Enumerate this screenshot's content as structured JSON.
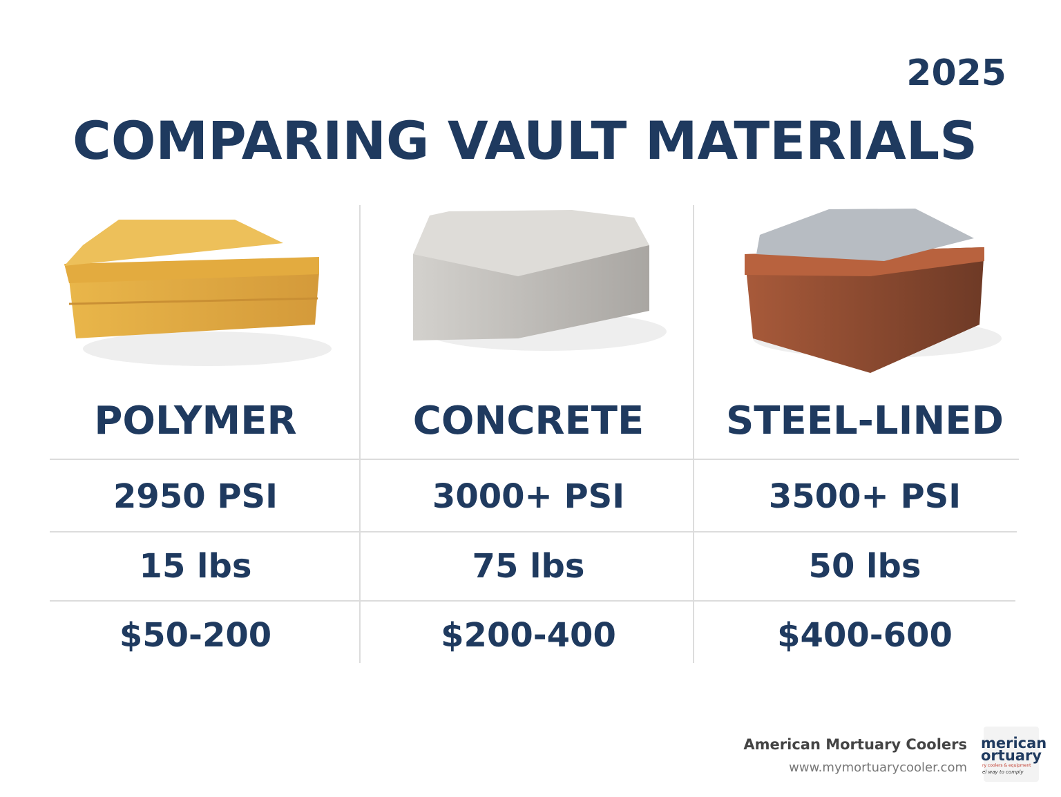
{
  "header": {
    "year": "2025",
    "title": "COMPARING VAULT MATERIALS"
  },
  "table": {
    "columns": [
      "POLYMER",
      "CONCRETE",
      "STEEL-LINED"
    ],
    "rows": [
      [
        "2950 PSI",
        "3000+ PSI",
        "3500+ PSI"
      ],
      [
        "15 lbs",
        "75 lbs",
        "50 lbs"
      ],
      [
        "$50-200",
        "$200-400",
        "$400-600"
      ]
    ]
  },
  "footer": {
    "company": "American Mortuary Coolers",
    "url": "www.mymortuarycooler.com",
    "logo": {
      "line1": "merican",
      "line2": "ortuary",
      "line3": "ry coolers & equipment",
      "line4": "el way to comply"
    }
  }
}
